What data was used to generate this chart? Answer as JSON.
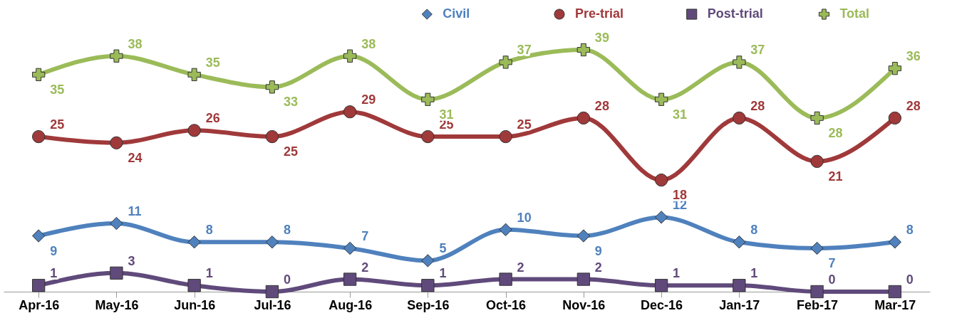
{
  "chart_data": {
    "type": "line",
    "categories": [
      "Apr-16",
      "May-16",
      "Jun-16",
      "Jul-16",
      "Aug-16",
      "Sep-16",
      "Oct-16",
      "Nov-16",
      "Dec-16",
      "Jan-17",
      "Feb-17",
      "Mar-17"
    ],
    "series": [
      {
        "name": "Civil",
        "color": "#4f81bd",
        "marker": "diamond",
        "values": [
          9,
          11,
          8,
          8,
          7,
          5,
          10,
          9,
          12,
          8,
          7,
          8
        ]
      },
      {
        "name": "Pre-trial",
        "color": "#a0393a",
        "marker": "circle",
        "values": [
          25,
          24,
          26,
          25,
          29,
          25,
          25,
          28,
          18,
          28,
          21,
          28
        ]
      },
      {
        "name": "Post-trial",
        "color": "#604a7b",
        "marker": "square",
        "values": [
          1,
          3,
          1,
          0,
          2,
          1,
          2,
          2,
          1,
          1,
          0,
          0
        ]
      },
      {
        "name": "Total",
        "color": "#9bbb59",
        "marker": "cross",
        "values": [
          35,
          38,
          35,
          33,
          38,
          31,
          37,
          39,
          31,
          37,
          28,
          36
        ]
      }
    ],
    "data_labels": true,
    "legend": "top right",
    "grid": false,
    "tick_labels": "x"
  }
}
